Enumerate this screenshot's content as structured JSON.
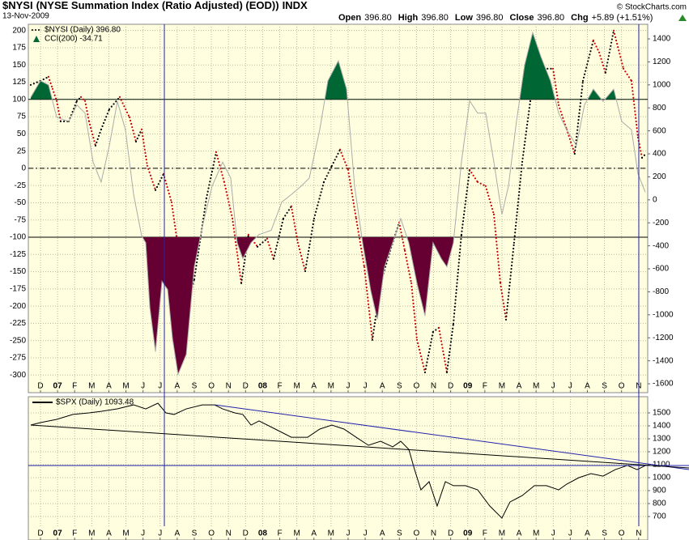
{
  "header": {
    "title": "$NYSI",
    "subtitle": "(NYSE Summation Index (Ratio Adjusted) (EOD))",
    "exchange": "INDX",
    "date": "13-Nov-2009",
    "credit": "© StockCharts.com",
    "quote": [
      {
        "label": "Open",
        "value": "396.80"
      },
      {
        "label": "High",
        "value": "396.80"
      },
      {
        "label": "Low",
        "value": "396.80"
      },
      {
        "label": "Close",
        "value": "396.80"
      },
      {
        "label": "Chg",
        "value": "+5.89 (+1.51%)"
      }
    ]
  },
  "chart_data": [
    {
      "type": "line",
      "background": "#ffffe0",
      "grid": true,
      "xlim": [
        -0.71,
        35.53
      ],
      "xticks": [
        {
          "value": 0,
          "label": "D"
        },
        {
          "value": 1,
          "label": "07"
        },
        {
          "value": 2,
          "label": "F"
        },
        {
          "value": 3,
          "label": "M"
        },
        {
          "value": 4,
          "label": "A"
        },
        {
          "value": 5,
          "label": "M"
        },
        {
          "value": 6,
          "label": "J"
        },
        {
          "value": 7,
          "label": "J"
        },
        {
          "value": 8,
          "label": "A"
        },
        {
          "value": 9,
          "label": "S"
        },
        {
          "value": 10,
          "label": "O"
        },
        {
          "value": 11,
          "label": "N"
        },
        {
          "value": 12,
          "label": "D"
        },
        {
          "value": 13,
          "label": "08"
        },
        {
          "value": 14,
          "label": "F"
        },
        {
          "value": 15,
          "label": "M"
        },
        {
          "value": 16,
          "label": "A"
        },
        {
          "value": 17,
          "label": "M"
        },
        {
          "value": 18,
          "label": "J"
        },
        {
          "value": 19,
          "label": "J"
        },
        {
          "value": 20,
          "label": "A"
        },
        {
          "value": 21,
          "label": "S"
        },
        {
          "value": 22,
          "label": "O"
        },
        {
          "value": 23,
          "label": "N"
        },
        {
          "value": 24,
          "label": "D"
        },
        {
          "value": 25,
          "label": "09"
        },
        {
          "value": 26,
          "label": "F"
        },
        {
          "value": 27,
          "label": "M"
        },
        {
          "value": 28,
          "label": "A"
        },
        {
          "value": 29,
          "label": "M"
        },
        {
          "value": 30,
          "label": "J"
        },
        {
          "value": 31,
          "label": "J"
        },
        {
          "value": 32,
          "label": "A"
        },
        {
          "value": 33,
          "label": "S"
        },
        {
          "value": 34,
          "label": "O"
        },
        {
          "value": 35,
          "label": "N"
        }
      ],
      "ylim": [
        -322,
        209
      ],
      "yticks": [
        200,
        175,
        150,
        125,
        100,
        75,
        50,
        25,
        0,
        -25,
        -50,
        -75,
        -100,
        -125,
        -150,
        -175,
        -200,
        -225,
        -250,
        -275,
        -300
      ],
      "y2lim": [
        -1656,
        1527
      ],
      "y2ticks": [
        1400,
        1200,
        1000,
        800,
        600,
        400,
        200,
        0,
        -200,
        -400,
        -600,
        -800,
        -1000,
        -1200,
        -1400,
        -1600
      ],
      "reference_lines": [
        {
          "value": 100,
          "style": "solid"
        },
        {
          "value": 0,
          "style": "dashdot"
        },
        {
          "value": -100,
          "style": "solid"
        }
      ],
      "series": [
        {
          "name": "$NYSI (Daily) 396.80",
          "style": "dotted",
          "axis": "y2",
          "color": "#000000",
          "down_color": "#cc0000",
          "x": [
            -0.57,
            0,
            0.47,
            0.71,
            0.95,
            1.18,
            1.66,
            2.13,
            2.37,
            2.61,
            2.84,
            3.22,
            3.55,
            4.03,
            4.64,
            5.21,
            5.59,
            5.92,
            6.25,
            6.73,
            7.2,
            7.67,
            8.15,
            8.62,
            9.0,
            9.71,
            10.28,
            10.75,
            11.23,
            11.75,
            12.17,
            12.7,
            13.26,
            13.64,
            14.21,
            14.68,
            15.06,
            15.49,
            16.01,
            16.58,
            17.05,
            17.53,
            18.0,
            18.47,
            18.95,
            19.42,
            19.9,
            20.46,
            20.99,
            21.32,
            21.7,
            22.03,
            22.5,
            22.97,
            23.31,
            23.78,
            24.16,
            24.63,
            25.11,
            25.58,
            26.05,
            26.53,
            26.91,
            27.24,
            27.71,
            28.19,
            28.66,
            28.99,
            29.47,
            29.99,
            30.32,
            30.79,
            31.26,
            31.74,
            32.35,
            32.69,
            33.06,
            33.54,
            34.11,
            34.58,
            34.96,
            35.2,
            35.39
          ],
          "values": [
            1000,
            1035,
            1070,
            965,
            860,
            683,
            683,
            860,
            894,
            860,
            683,
            472,
            613,
            789,
            894,
            718,
            507,
            613,
            296,
            85,
            225,
            -21,
            -514,
            -901,
            -690,
            14,
            415,
            155,
            -162,
            -725,
            -303,
            -408,
            -338,
            -514,
            -162,
            -56,
            -373,
            -620,
            -162,
            155,
            296,
            437,
            261,
            -162,
            -585,
            -1218,
            -725,
            -444,
            -197,
            -444,
            -725,
            -1218,
            -1500,
            -1148,
            -1113,
            -1500,
            -1077,
            -303,
            261,
            155,
            120,
            -127,
            -725,
            -1042,
            -373,
            331,
            859,
            1317,
            1141,
            1141,
            824,
            613,
            401,
            1035,
            1387,
            1282,
            1106,
            1472,
            1141,
            1035,
            542,
            366,
            396.8
          ]
        },
        {
          "name": "CCI(200) -34.71",
          "style": "line",
          "axis": "y",
          "color": "#aaaaaa",
          "legend_color": "#006633",
          "thresholds": [
            100,
            -100
          ],
          "fill_colors": [
            "#006633",
            "#660033"
          ],
          "x": [
            -0.57,
            0,
            0.47,
            0.95,
            1.66,
            2.13,
            2.61,
            3.08,
            3.55,
            4.03,
            4.5,
            4.97,
            5.45,
            5.92,
            6.16,
            6.4,
            6.73,
            7.11,
            7.44,
            7.72,
            8.05,
            8.53,
            9.0,
            9.47,
            10.04,
            10.66,
            11.13,
            11.51,
            11.84,
            12.32,
            12.79,
            13.5,
            14.12,
            14.68,
            15.25,
            15.73,
            16.34,
            16.82,
            17.43,
            17.91,
            18.38,
            18.85,
            19.33,
            19.71,
            20.13,
            20.61,
            21.08,
            21.55,
            22.03,
            22.5,
            22.97,
            23.45,
            23.78,
            24.16,
            24.63,
            25.11,
            25.58,
            26.05,
            26.53,
            27.0,
            27.38,
            27.85,
            28.33,
            28.8,
            29.28,
            29.84,
            30.32,
            30.79,
            31.36,
            31.83,
            32.35,
            32.92,
            33.54,
            34.01,
            34.58,
            34.96,
            35.39
          ],
          "values": [
            103,
            127,
            121,
            74,
            68,
            92,
            80,
            9,
            -20,
            33,
            97,
            56,
            -38,
            -98,
            -108,
            -202,
            -266,
            -164,
            -176,
            -246,
            -299,
            -270,
            -143,
            -85,
            -26,
            9,
            -14,
            -108,
            -131,
            -108,
            -96,
            -90,
            -49,
            -38,
            -26,
            -14,
            56,
            127,
            156,
            115,
            -26,
            -108,
            -178,
            -219,
            -143,
            -108,
            -73,
            -108,
            -167,
            -214,
            -108,
            -131,
            -143,
            -108,
            9,
            98,
            80,
            80,
            9,
            -67,
            -26,
            68,
            150,
            197,
            162,
            127,
            80,
            56,
            33,
            92,
            115,
            97,
            115,
            68,
            56,
            -8,
            -34.71
          ]
        }
      ]
    },
    {
      "type": "line",
      "background": "#ffffe0",
      "grid": true,
      "xlim": [
        -0.71,
        35.53
      ],
      "xticks": [
        {
          "value": 0,
          "label": "D"
        },
        {
          "value": 1,
          "label": "07"
        },
        {
          "value": 2,
          "label": "F"
        },
        {
          "value": 3,
          "label": "M"
        },
        {
          "value": 4,
          "label": "A"
        },
        {
          "value": 5,
          "label": "M"
        },
        {
          "value": 6,
          "label": "J"
        },
        {
          "value": 7,
          "label": "J"
        },
        {
          "value": 8,
          "label": "A"
        },
        {
          "value": 9,
          "label": "S"
        },
        {
          "value": 10,
          "label": "O"
        },
        {
          "value": 11,
          "label": "N"
        },
        {
          "value": 12,
          "label": "D"
        },
        {
          "value": 13,
          "label": "08"
        },
        {
          "value": 14,
          "label": "F"
        },
        {
          "value": 15,
          "label": "M"
        },
        {
          "value": 16,
          "label": "A"
        },
        {
          "value": 17,
          "label": "M"
        },
        {
          "value": 18,
          "label": "J"
        },
        {
          "value": 19,
          "label": "J"
        },
        {
          "value": 20,
          "label": "A"
        },
        {
          "value": 21,
          "label": "S"
        },
        {
          "value": 22,
          "label": "O"
        },
        {
          "value": 23,
          "label": "N"
        },
        {
          "value": 24,
          "label": "D"
        },
        {
          "value": 25,
          "label": "09"
        },
        {
          "value": 26,
          "label": "F"
        },
        {
          "value": 27,
          "label": "M"
        },
        {
          "value": 28,
          "label": "A"
        },
        {
          "value": 29,
          "label": "M"
        },
        {
          "value": 30,
          "label": "J"
        },
        {
          "value": 31,
          "label": "J"
        },
        {
          "value": 32,
          "label": "A"
        },
        {
          "value": 33,
          "label": "S"
        },
        {
          "value": 34,
          "label": "O"
        },
        {
          "value": 35,
          "label": "N"
        }
      ],
      "y2lim": [
        625,
        1625
      ],
      "y2ticks": [
        1500,
        1400,
        1300,
        1200,
        1100,
        1000,
        900,
        800,
        700
      ],
      "series": [
        {
          "name": "$SPX (Daily) 1093.48",
          "style": "line",
          "axis": "y2",
          "color": "#000000",
          "x": [
            -0.57,
            0,
            0.95,
            1.9,
            2.84,
            3.55,
            4.5,
            5.45,
            6.16,
            6.87,
            7.34,
            7.82,
            8.53,
            9.47,
            10.18,
            10.66,
            11.37,
            11.84,
            12.32,
            12.79,
            13.74,
            14.68,
            15.63,
            16.34,
            17.05,
            17.76,
            18.47,
            19.19,
            19.9,
            20.61,
            21.08,
            21.55,
            21.89,
            22.26,
            22.74,
            23.21,
            23.69,
            24.16,
            24.87,
            25.58,
            26.29,
            27.0,
            27.47,
            28.19,
            28.9,
            29.61,
            30.32,
            30.79,
            31.5,
            32.21,
            32.92,
            33.63,
            34.34,
            34.91,
            35.39
          ],
          "values": [
            1406,
            1425,
            1450,
            1488,
            1500,
            1512,
            1531,
            1562,
            1531,
            1575,
            1500,
            1488,
            1531,
            1562,
            1562,
            1531,
            1500,
            1488,
            1406,
            1438,
            1375,
            1312,
            1312,
            1375,
            1406,
            1375,
            1312,
            1250,
            1281,
            1238,
            1281,
            1219,
            1062,
            906,
            969,
            781,
            969,
            938,
            938,
            906,
            781,
            688,
            812,
            862,
            938,
            938,
            906,
            950,
            1000,
            1031,
            1012,
            1062,
            1094,
            1062,
            1093.48
          ]
        }
      ]
    }
  ]
}
